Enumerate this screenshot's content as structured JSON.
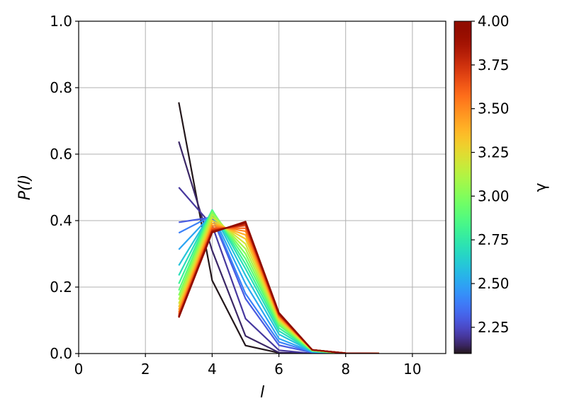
{
  "chart_data": {
    "type": "line",
    "title": "",
    "xlabel": "l",
    "ylabel": "P(l)",
    "xlim": [
      0,
      11
    ],
    "ylim": [
      0,
      1.0
    ],
    "xticks": [
      0,
      2,
      4,
      6,
      8,
      10
    ],
    "xtick_labels": [
      "0",
      "2",
      "4",
      "6",
      "8",
      "10"
    ],
    "yticks": [
      0.0,
      0.2,
      0.4,
      0.6,
      0.8,
      1.0
    ],
    "ytick_labels": [
      "0.0",
      "0.2",
      "0.4",
      "0.6",
      "0.8",
      "1.0"
    ],
    "grid": true,
    "legend": "none",
    "colorbar": {
      "label": "γ",
      "colormap": "turbo",
      "vmin": 2.1,
      "vmax": 4.0,
      "ticks": [
        2.25,
        2.5,
        2.75,
        3.0,
        3.25,
        3.5,
        3.75,
        4.0
      ],
      "tick_labels": [
        "2.25",
        "2.50",
        "2.75",
        "3.00",
        "3.25",
        "3.50",
        "3.75",
        "4.00"
      ]
    },
    "series": [
      {
        "gamma": 2.1,
        "x": [
          3,
          4,
          5,
          6,
          7,
          8,
          9
        ],
        "y": [
          0.756,
          0.22,
          0.024,
          0.002,
          0.0,
          0.0,
          0.0
        ]
      },
      {
        "gamma": 2.15,
        "x": [
          3,
          4,
          5,
          6,
          7,
          8,
          9
        ],
        "y": [
          0.638,
          0.31,
          0.053,
          0.003,
          0.0,
          0.0,
          0.0
        ]
      },
      {
        "gamma": 2.2,
        "x": [
          3,
          4,
          5,
          6,
          7,
          8,
          9
        ],
        "y": [
          0.5,
          0.385,
          0.105,
          0.01,
          0.0,
          0.0,
          0.0
        ]
      },
      {
        "gamma": 2.3,
        "x": [
          3,
          4,
          5,
          6,
          7,
          8,
          9
        ],
        "y": [
          0.395,
          0.41,
          0.165,
          0.025,
          0.003,
          0.0,
          0.0
        ]
      },
      {
        "gamma": 2.4,
        "x": [
          3,
          4,
          5,
          6,
          7,
          8,
          9
        ],
        "y": [
          0.363,
          0.415,
          0.18,
          0.035,
          0.004,
          0.0,
          0.0
        ]
      },
      {
        "gamma": 2.5,
        "x": [
          3,
          4,
          5,
          6,
          7,
          8,
          9
        ],
        "y": [
          0.313,
          0.42,
          0.21,
          0.045,
          0.005,
          0.0,
          0.0
        ]
      },
      {
        "gamma": 2.6,
        "x": [
          3,
          4,
          5,
          6,
          7,
          8,
          9
        ],
        "y": [
          0.265,
          0.428,
          0.235,
          0.058,
          0.006,
          0.0,
          0.0
        ]
      },
      {
        "gamma": 2.7,
        "x": [
          3,
          4,
          5,
          6,
          7,
          8,
          9
        ],
        "y": [
          0.235,
          0.432,
          0.255,
          0.068,
          0.007,
          0.0,
          0.0
        ]
      },
      {
        "gamma": 2.8,
        "x": [
          3,
          4,
          5,
          6,
          7,
          8,
          9
        ],
        "y": [
          0.21,
          0.432,
          0.27,
          0.077,
          0.008,
          0.0,
          0.0
        ]
      },
      {
        "gamma": 2.9,
        "x": [
          3,
          4,
          5,
          6,
          7,
          8,
          9
        ],
        "y": [
          0.19,
          0.43,
          0.285,
          0.085,
          0.009,
          0.0,
          0.0
        ]
      },
      {
        "gamma": 3.0,
        "x": [
          3,
          4,
          5,
          6,
          7,
          8,
          9
        ],
        "y": [
          0.175,
          0.425,
          0.3,
          0.09,
          0.009,
          0.0,
          0.0
        ]
      },
      {
        "gamma": 3.1,
        "x": [
          3,
          4,
          5,
          6,
          7,
          8,
          9
        ],
        "y": [
          0.162,
          0.418,
          0.315,
          0.095,
          0.01,
          0.0,
          0.0
        ]
      },
      {
        "gamma": 3.2,
        "x": [
          3,
          4,
          5,
          6,
          7,
          8,
          9
        ],
        "y": [
          0.15,
          0.41,
          0.33,
          0.1,
          0.01,
          0.001,
          0.0
        ]
      },
      {
        "gamma": 3.3,
        "x": [
          3,
          4,
          5,
          6,
          7,
          8,
          9
        ],
        "y": [
          0.14,
          0.4,
          0.345,
          0.104,
          0.011,
          0.001,
          0.0
        ]
      },
      {
        "gamma": 3.4,
        "x": [
          3,
          4,
          5,
          6,
          7,
          8,
          9
        ],
        "y": [
          0.132,
          0.392,
          0.357,
          0.108,
          0.011,
          0.001,
          0.0
        ]
      },
      {
        "gamma": 3.5,
        "x": [
          3,
          4,
          5,
          6,
          7,
          8,
          9
        ],
        "y": [
          0.125,
          0.385,
          0.368,
          0.111,
          0.011,
          0.001,
          0.0
        ]
      },
      {
        "gamma": 3.6,
        "x": [
          3,
          4,
          5,
          6,
          7,
          8,
          9
        ],
        "y": [
          0.12,
          0.378,
          0.377,
          0.114,
          0.011,
          0.001,
          0.0
        ]
      },
      {
        "gamma": 3.7,
        "x": [
          3,
          4,
          5,
          6,
          7,
          8,
          9
        ],
        "y": [
          0.115,
          0.373,
          0.385,
          0.117,
          0.011,
          0.001,
          0.0
        ]
      },
      {
        "gamma": 3.8,
        "x": [
          3,
          4,
          5,
          6,
          7,
          8,
          9
        ],
        "y": [
          0.112,
          0.369,
          0.39,
          0.119,
          0.011,
          0.001,
          0.0
        ]
      },
      {
        "gamma": 3.9,
        "x": [
          3,
          4,
          5,
          6,
          7,
          8,
          9
        ],
        "y": [
          0.11,
          0.366,
          0.394,
          0.121,
          0.011,
          0.001,
          0.0
        ]
      },
      {
        "gamma": 4.0,
        "x": [
          3,
          4,
          5,
          6,
          7,
          8,
          9
        ],
        "y": [
          0.108,
          0.364,
          0.397,
          0.123,
          0.011,
          0.001,
          0.0
        ]
      }
    ]
  }
}
